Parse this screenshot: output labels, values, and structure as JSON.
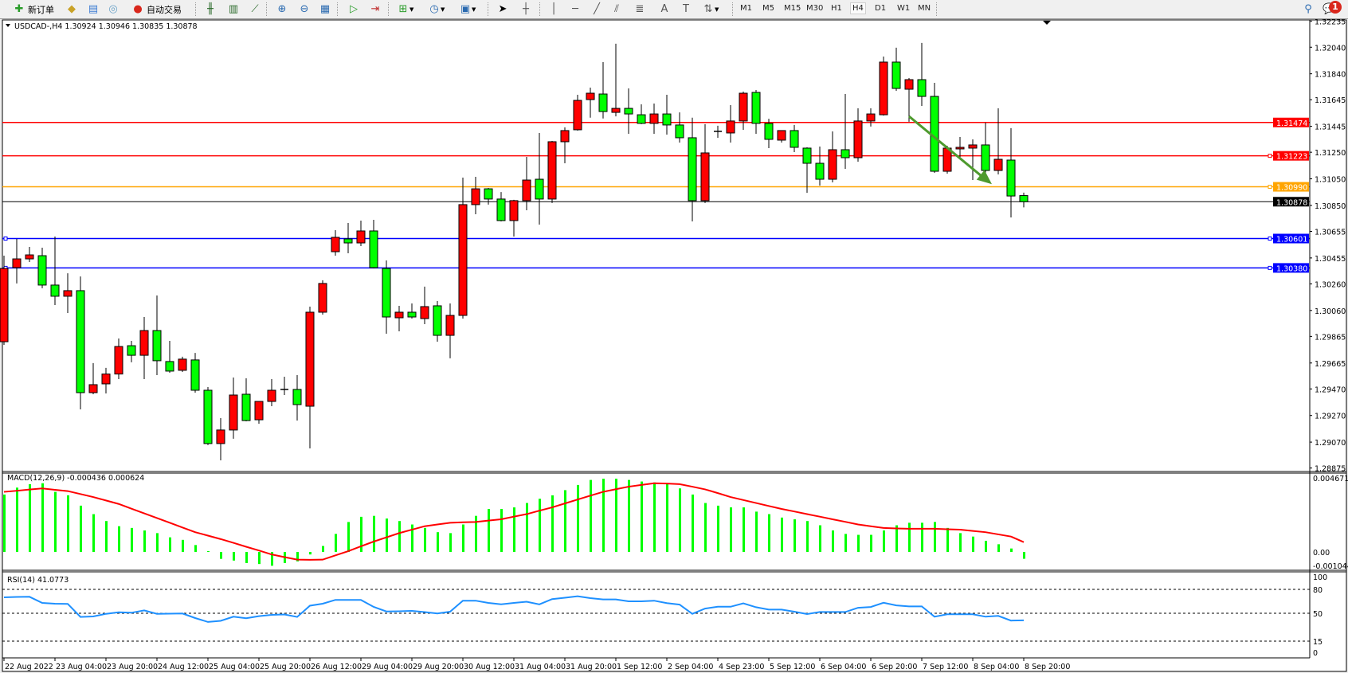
{
  "toolbar": {
    "new_order_label": "新订单",
    "auto_trade_label": "自动交易",
    "timeframes": [
      "M1",
      "M5",
      "M15",
      "M30",
      "H1",
      "H4",
      "D1",
      "W1",
      "MN"
    ],
    "active_timeframe": "H4",
    "notification_count": "1",
    "icons": [
      "new-order-icon",
      "market-watch-icon",
      "navigator-icon",
      "signals-icon",
      "auto-trading-icon",
      "bar-chart-icon",
      "candlestick-icon",
      "line-chart-icon",
      "zoom-in-icon",
      "zoom-out-icon",
      "tile-windows-icon",
      "auto-scroll-icon",
      "chart-shift-icon",
      "indicators-icon",
      "periods-icon",
      "templates-icon",
      "cursor-icon",
      "crosshair-icon",
      "vertical-line-icon",
      "horizontal-line-icon",
      "trendline-icon",
      "equidistant-channel-icon",
      "fibonacci-icon",
      "text-icon",
      "text-label-icon",
      "arrows-icon",
      "search-icon",
      "notification-icon"
    ]
  },
  "main": {
    "header": "USDCAD-,H4  1.30924 1.30946 1.30835 1.30878",
    "macd_label": "MACD(12,26,9) -0.000436 0.000624",
    "rsi_label": "RSI(14) 41.0773"
  },
  "colors": {
    "bull": "#ff0000",
    "bear": "#00ff00",
    "resistance": "#ff0000",
    "orange_level": "#ffa500",
    "support": "#0000ff",
    "macd_hist": "#00ff00",
    "macd_signal": "#ff0000",
    "rsi_line": "#1e90ff",
    "arrow": "#4e9a2e"
  },
  "chart_data": [
    {
      "type": "candlestick",
      "symbol": "USDCAD-",
      "timeframe": "H4",
      "ylim": [
        1.28875,
        1.32235
      ],
      "y_ticks": [
        "1.32235",
        "1.32040",
        "1.31840",
        "1.31645",
        "1.31445",
        "1.31250",
        "1.31050",
        "1.30850",
        "1.30655",
        "1.30455",
        "1.30260",
        "1.30060",
        "1.29865",
        "1.29665",
        "1.29470",
        "1.29270",
        "1.29070",
        "1.28875"
      ],
      "x_tick_labels": [
        "22 Aug 2022",
        "23 Aug 04:00",
        "23 Aug 20:00",
        "24 Aug 12:00",
        "25 Aug 04:00",
        "25 Aug 20:00",
        "26 Aug 12:00",
        "29 Aug 04:00",
        "29 Aug 20:00",
        "30 Aug 12:00",
        "31 Aug 04:00",
        "31 Aug 20:00",
        "1 Sep 12:00",
        "2 Sep 04:00",
        "4 Sep 23:00",
        "5 Sep 12:00",
        "6 Sep 04:00",
        "6 Sep 20:00",
        "7 Sep 12:00",
        "8 Sep 04:00",
        "8 Sep 20:00"
      ],
      "x_tick_every": 4,
      "ohlc_fields": [
        "open",
        "high",
        "low",
        "close"
      ],
      "ohlc": [
        [
          1.29825,
          1.30472,
          1.29801,
          1.30376
        ],
        [
          1.30382,
          1.30598,
          1.30263,
          1.30448
        ],
        [
          1.30448,
          1.30538,
          1.30424,
          1.30478
        ],
        [
          1.30472,
          1.30532,
          1.30227,
          1.30251
        ],
        [
          1.30251,
          1.30616,
          1.30101,
          1.30167
        ],
        [
          1.30167,
          1.3034,
          1.30041,
          1.30209
        ],
        [
          1.30209,
          1.30316,
          1.29316,
          1.29442
        ],
        [
          1.29442,
          1.29664,
          1.2943,
          1.29502
        ],
        [
          1.29508,
          1.29628,
          1.29436,
          1.29582
        ],
        [
          1.29582,
          1.29849,
          1.29544,
          1.29789
        ],
        [
          1.29795,
          1.29831,
          1.2967,
          1.29723
        ],
        [
          1.29723,
          1.30011,
          1.29544,
          1.29909
        ],
        [
          1.29909,
          1.30173,
          1.29574,
          1.29682
        ],
        [
          1.29676,
          1.29831,
          1.29592,
          1.29604
        ],
        [
          1.2961,
          1.29712,
          1.29598,
          1.29694
        ],
        [
          1.29688,
          1.29741,
          1.29442,
          1.2946
        ],
        [
          1.2946,
          1.29484,
          1.29047,
          1.29059
        ],
        [
          1.29059,
          1.2925,
          1.28933,
          1.29161
        ],
        [
          1.29161,
          1.29556,
          1.29095,
          1.29424
        ],
        [
          1.2943,
          1.2955,
          1.29226,
          1.29232
        ],
        [
          1.29238,
          1.29376,
          1.29208,
          1.29376
        ],
        [
          1.29376,
          1.29544,
          1.2934,
          1.2946
        ],
        [
          1.2946,
          1.29562,
          1.29424,
          1.29466
        ],
        [
          1.29466,
          1.29574,
          1.29232,
          1.29352
        ],
        [
          1.2934,
          1.30089,
          1.29023,
          1.30047
        ],
        [
          1.30047,
          1.30287,
          1.30029,
          1.30263
        ],
        [
          1.30502,
          1.30664,
          1.30472,
          1.3061
        ],
        [
          1.30598,
          1.30718,
          1.3049,
          1.30568
        ],
        [
          1.30568,
          1.30736,
          1.30544,
          1.30658
        ],
        [
          1.30658,
          1.30742,
          1.30376,
          1.30382
        ],
        [
          1.30376,
          1.30436,
          1.29885,
          1.30011
        ],
        [
          1.30005,
          1.30095,
          1.29903,
          1.30047
        ],
        [
          1.30047,
          1.30113,
          1.29999,
          1.30011
        ],
        [
          1.29999,
          1.30239,
          1.29957,
          1.30089
        ],
        [
          1.30095,
          1.30131,
          1.29825,
          1.29873
        ],
        [
          1.29873,
          1.30113,
          1.297,
          1.30023
        ],
        [
          1.30023,
          1.31059,
          1.29999,
          1.30856
        ],
        [
          1.30856,
          1.31065,
          1.30784,
          1.30975
        ],
        [
          1.30975,
          1.30981,
          1.30856,
          1.30898
        ],
        [
          1.30898,
          1.30951,
          1.3073,
          1.30736
        ],
        [
          1.30736,
          1.30892,
          1.30616,
          1.30886
        ],
        [
          1.30886,
          1.31215,
          1.30814,
          1.31041
        ],
        [
          1.31047,
          1.31395,
          1.30706,
          1.30898
        ],
        [
          1.30898,
          1.31335,
          1.30868,
          1.31329
        ],
        [
          1.31329,
          1.31437,
          1.31167,
          1.31413
        ],
        [
          1.31419,
          1.31682,
          1.31413,
          1.3164
        ],
        [
          1.31646,
          1.31736,
          1.3151,
          1.31694
        ],
        [
          1.31688,
          1.31928,
          1.31504,
          1.31556
        ],
        [
          1.3155,
          1.32066,
          1.3152,
          1.3158
        ],
        [
          1.3158,
          1.3173,
          1.31389,
          1.31538
        ],
        [
          1.31532,
          1.3161,
          1.31461,
          1.31467
        ],
        [
          1.31467,
          1.31616,
          1.31389,
          1.31538
        ],
        [
          1.31538,
          1.31682,
          1.31383,
          1.31455
        ],
        [
          1.31455,
          1.3155,
          1.31323,
          1.31359
        ],
        [
          1.31359,
          1.3151,
          1.3073,
          1.30886
        ],
        [
          1.30886,
          1.31461,
          1.30868,
          1.31245
        ],
        [
          1.31401,
          1.31449,
          1.31359,
          1.31407
        ],
        [
          1.31395,
          1.31604,
          1.31323,
          1.31485
        ],
        [
          1.31485,
          1.31706,
          1.31419,
          1.31694
        ],
        [
          1.317,
          1.31718,
          1.31389,
          1.31467
        ],
        [
          1.31467,
          1.31502,
          1.31281,
          1.31347
        ],
        [
          1.31341,
          1.31413,
          1.31323,
          1.31413
        ],
        [
          1.31413,
          1.31455,
          1.31251,
          1.31287
        ],
        [
          1.31281,
          1.31287,
          1.30945,
          1.31167
        ],
        [
          1.31167,
          1.31293,
          1.30999,
          1.31047
        ],
        [
          1.31047,
          1.31407,
          1.31023,
          1.31269
        ],
        [
          1.31269,
          1.31688,
          1.31125,
          1.31209
        ],
        [
          1.31209,
          1.3158,
          1.31179,
          1.31485
        ],
        [
          1.31485,
          1.3158,
          1.31443,
          1.31538
        ],
        [
          1.31532,
          1.3197,
          1.31526,
          1.31928
        ],
        [
          1.31928,
          1.32036,
          1.31712,
          1.3173
        ],
        [
          1.31724,
          1.31808,
          1.31479,
          1.31796
        ],
        [
          1.31796,
          1.32072,
          1.31598,
          1.3167
        ],
        [
          1.3167,
          1.31772,
          1.31095,
          1.31107
        ],
        [
          1.31107,
          1.31299,
          1.31089,
          1.31281
        ],
        [
          1.31275,
          1.31365,
          1.31203,
          1.31287
        ],
        [
          1.31281,
          1.31347,
          1.31041,
          1.31305
        ],
        [
          1.31305,
          1.31473,
          1.31077,
          1.31113
        ],
        [
          1.31113,
          1.3158,
          1.31083,
          1.31197
        ],
        [
          1.31191,
          1.31431,
          1.3076,
          1.30921
        ],
        [
          1.30924,
          1.30946,
          1.30835,
          1.30878
        ]
      ],
      "current_price": "1.30878",
      "horizontal_levels": [
        {
          "price": "1.31474",
          "color": "#ff0000"
        },
        {
          "price": "1.31223",
          "color": "#ff0000"
        },
        {
          "price": "1.30990",
          "color": "#ffa500"
        },
        {
          "price": "1.30601",
          "color": "#0000ff"
        },
        {
          "price": "1.30380",
          "color": "#0000ff"
        }
      ],
      "annotation_arrow": {
        "from": [
          71,
          1.3152
        ],
        "to": [
          77.5,
          1.3101
        ],
        "color": "#4e9a2e"
      }
    },
    {
      "type": "bar+line",
      "indicator": "MACD(12,26,9)",
      "ylim": [
        -0.001044,
        0.004671
      ],
      "y_ticks": [
        "0.004671",
        "0.00",
        "-0.001044"
      ],
      "histogram": [
        0.00366,
        0.0041,
        0.00432,
        0.00438,
        0.00383,
        0.00361,
        0.00295,
        0.00241,
        0.00197,
        0.00164,
        0.00153,
        0.00137,
        0.0012,
        0.00093,
        0.00077,
        0.00044,
        5e-05,
        -0.00044,
        -0.00055,
        -0.00071,
        -0.00077,
        -0.00088,
        -0.00071,
        -0.0006,
        -0.00016,
        0.00038,
        0.00115,
        0.00191,
        0.00224,
        0.0023,
        0.00213,
        0.00197,
        0.00175,
        0.00153,
        0.00126,
        0.0012,
        0.00175,
        0.0023,
        0.00274,
        0.00274,
        0.00284,
        0.00312,
        0.00339,
        0.00361,
        0.00394,
        0.00427,
        0.00459,
        0.00467,
        0.00467,
        0.00459,
        0.00449,
        0.00443,
        0.00432,
        0.00405,
        0.00366,
        0.00312,
        0.00295,
        0.00284,
        0.00284,
        0.00257,
        0.00241,
        0.00219,
        0.00208,
        0.00197,
        0.0017,
        0.00137,
        0.00115,
        0.00109,
        0.00109,
        0.00137,
        0.0017,
        0.00186,
        0.00186,
        0.00191,
        0.00153,
        0.0012,
        0.00098,
        0.00071,
        0.00049,
        0.00022,
        -0.000436
      ],
      "signal": [
        0.00383,
        0.0039,
        0.00398,
        0.00405,
        0.00396,
        0.00388,
        0.00369,
        0.0035,
        0.00328,
        0.00306,
        0.00276,
        0.00246,
        0.00216,
        0.00186,
        0.00156,
        0.00126,
        0.00104,
        0.00082,
        0.00058,
        0.00033,
        9e-05,
        -0.00016,
        -0.00033,
        -0.00049,
        -0.0005,
        -0.00049,
        -0.00022,
        5e-05,
        0.00036,
        0.00066,
        0.00093,
        0.0012,
        0.00142,
        0.00164,
        0.00175,
        0.00186,
        0.00189,
        0.00191,
        0.002,
        0.00208,
        0.00225,
        0.00241,
        0.00263,
        0.00284,
        0.00309,
        0.00334,
        0.00359,
        0.00383,
        0.004,
        0.00416,
        0.00427,
        0.00438,
        0.00436,
        0.00432,
        0.00416,
        0.00399,
        0.00375,
        0.0035,
        0.00331,
        0.00312,
        0.00293,
        0.00274,
        0.00258,
        0.00241,
        0.00225,
        0.00208,
        0.00192,
        0.00175,
        0.00164,
        0.00153,
        0.0015,
        0.00148,
        0.00148,
        0.00148,
        0.00145,
        0.00142,
        0.00134,
        0.00126,
        0.00112,
        0.00098,
        0.000624
      ]
    },
    {
      "type": "line",
      "indicator": "RSI(14)",
      "ylim": [
        0,
        100
      ],
      "y_ticks": [
        "100",
        "80",
        "50",
        "15",
        "0"
      ],
      "levels": [
        80,
        50,
        15
      ],
      "values": [
        70,
        70.5,
        70.7,
        63,
        62,
        61.8,
        45.4,
        46,
        49.3,
        51.3,
        50.7,
        53.6,
        49.3,
        49.5,
        49.7,
        44,
        39.1,
        40.5,
        45.7,
        43.8,
        46.4,
        48,
        48.5,
        45.4,
        59.5,
        62,
        66.8,
        66.8,
        66.8,
        58,
        52.3,
        52.5,
        53,
        51.5,
        49.7,
        52,
        65.8,
        65.8,
        63,
        61.2,
        63,
        64.5,
        61.2,
        67.8,
        69.5,
        71.4,
        69,
        67.4,
        67.4,
        65,
        65,
        65.8,
        62.8,
        60.9,
        49.3,
        55.9,
        58.2,
        58.2,
        62.5,
        57.6,
        54.6,
        54.6,
        52,
        49,
        51.6,
        51.6,
        51.6,
        56.9,
        57.9,
        63.2,
        59.9,
        58.6,
        58.6,
        45.7,
        48.7,
        48.7,
        48.7,
        45.7,
        46.7,
        40.8,
        41.0773
      ]
    }
  ]
}
